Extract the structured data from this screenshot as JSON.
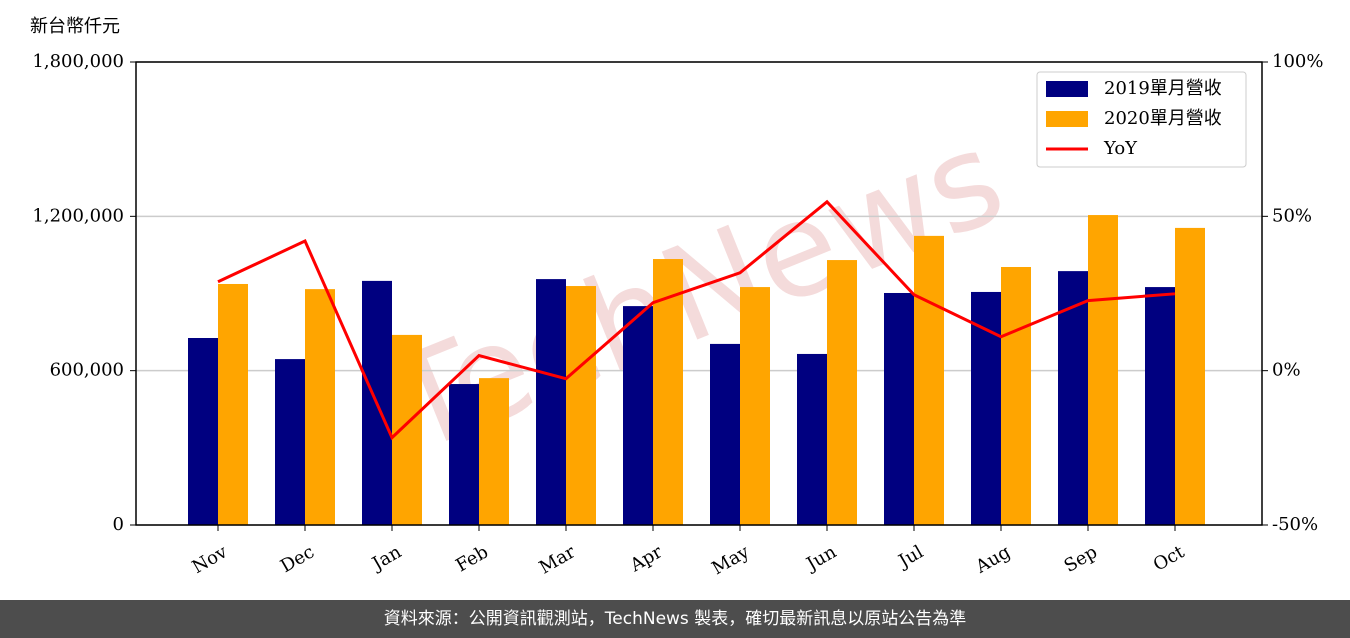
{
  "chart_data": {
    "type": "bar_line",
    "ylabel": "新台幣仟元",
    "watermark": "TechNews",
    "categories": [
      "Nov",
      "Dec",
      "Jan",
      "Feb",
      "Mar",
      "Apr",
      "May",
      "Jun",
      "Jul",
      "Aug",
      "Sep",
      "Oct"
    ],
    "series": [
      {
        "name": "2019單月營收",
        "color": "#000080",
        "type": "bar",
        "values": [
          727000,
          645000,
          949000,
          548000,
          956000,
          851000,
          704000,
          665000,
          902000,
          906000,
          987000,
          925000
        ]
      },
      {
        "name": "2020單月營收",
        "color": "#ffa500",
        "type": "bar",
        "values": [
          937000,
          917000,
          739000,
          571000,
          929000,
          1034000,
          925000,
          1030000,
          1124000,
          1003000,
          1205000,
          1155000
        ]
      },
      {
        "name": "YoY",
        "color": "#ff0000",
        "type": "line",
        "axis": "y2",
        "values": [
          28.8,
          42.0,
          -21.7,
          4.9,
          -2.6,
          22.0,
          31.7,
          54.7,
          24.6,
          11.0,
          22.7,
          24.9
        ]
      }
    ],
    "ylim": [
      0,
      1800000
    ],
    "yticks": [
      0,
      {
        "value": 600000,
        "label": "600,000"
      },
      {
        "value": 1200000,
        "label": "1,200,000"
      },
      {
        "value": 1800000,
        "label": "1,800,000"
      }
    ],
    "y2lim": [
      -50,
      100
    ],
    "y2ticks": [
      {
        "value": -50,
        "label": "-50%"
      },
      {
        "value": 0,
        "label": "0%"
      },
      {
        "value": 50,
        "label": "50%"
      },
      {
        "value": 100,
        "label": "100%"
      }
    ],
    "grid": true,
    "legend": "upper right"
  },
  "footer": "資料來源：公開資訊觀測站，TechNews 製表，確切最新訊息以原站公告為準"
}
